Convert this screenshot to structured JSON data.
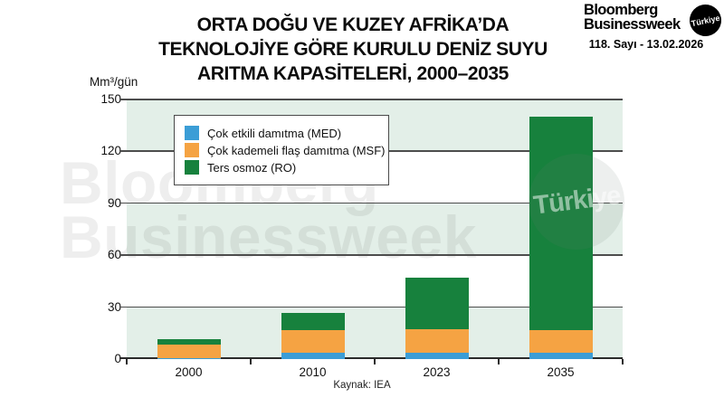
{
  "header": {
    "title_lines": [
      "ORTA DOĞU VE KUZEY AFRİKA’DA",
      "TEKNOLOJİYE GÖRE KURULU DENİZ SUYU",
      "ARITMA KAPASİTELERİ, 2000–2035"
    ]
  },
  "masthead": {
    "brand_line1": "Bloomberg",
    "brand_line2": "Businessweek",
    "badge": "Türkiye",
    "issue": "118. Sayı - 13.02.2026"
  },
  "watermark": {
    "line1": "Bloomberg",
    "line2": "Businessweek",
    "circle_text": "Türkiye"
  },
  "chart_data": {
    "type": "bar",
    "stacked": true,
    "title": "ORTA DOĞU VE KUZEY AFRİKA’DA TEKNOLOJİYE GÖRE KURULU DENİZ SUYU ARITMA KAPASİTELERİ, 2000–2035",
    "unit_label": "Mm³/gün",
    "categories": [
      "2000",
      "2010",
      "2023",
      "2035"
    ],
    "series": [
      {
        "name": "Çok etkili damıtma (MED)",
        "color": "#3b9dd6",
        "values": [
          0.5,
          3.5,
          3.5,
          3.5
        ]
      },
      {
        "name": "Çok kademeli flaş damıtma (MSF)",
        "color": "#f5a343",
        "values": [
          8,
          13,
          13.5,
          13
        ]
      },
      {
        "name": "Ters osmoz (RO)",
        "color": "#17813d",
        "values": [
          3,
          10,
          30,
          123.5
        ]
      }
    ],
    "totals": [
      11.5,
      26.5,
      47,
      140
    ],
    "ylim": [
      0,
      150
    ],
    "yticks": [
      0,
      30,
      60,
      90,
      120,
      150
    ],
    "grid": true,
    "legend_position": "top-left-inside",
    "source": "Kaynak: IEA",
    "band_color": "#e3efe8",
    "grid_color": "#4d4d4d"
  }
}
